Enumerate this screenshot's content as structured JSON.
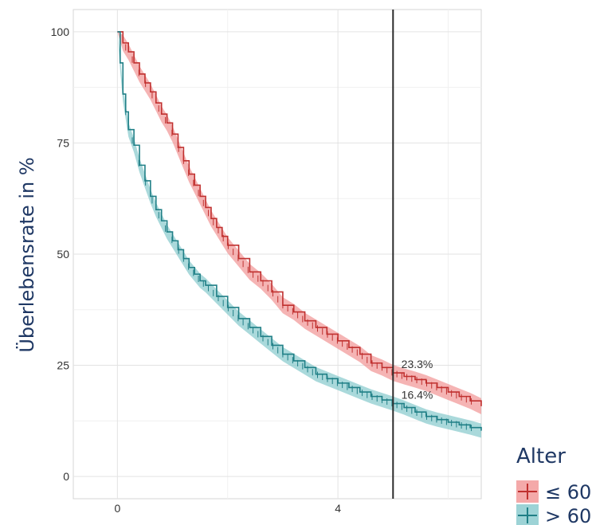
{
  "chart_data": {
    "type": "line",
    "title": "",
    "xlabel": "",
    "ylabel": "Überlebensrate in %",
    "xlim": [
      -0.8,
      6.6
    ],
    "ylim": [
      -5,
      105
    ],
    "x_ticks": [
      0,
      4
    ],
    "x_tick_labels": [
      "0",
      "4"
    ],
    "y_ticks": [
      0,
      25,
      50,
      75,
      100
    ],
    "y_tick_labels": [
      "0",
      "25",
      "50",
      "75",
      "100"
    ],
    "grid": true,
    "reference_line_x": 5,
    "legend": {
      "title": "Alter",
      "placement": "bottom-right",
      "entries": [
        "≤ 60",
        "> 60"
      ]
    },
    "annotations": [
      {
        "text": "23.3%",
        "x": 5.15,
        "y": 25.3
      },
      {
        "text": "16.4%",
        "x": 5.15,
        "y": 18.4
      }
    ],
    "series": [
      {
        "name": "≤ 60",
        "color": "#c0302f",
        "band_color": "#f08c8c",
        "x": [
          0,
          0.1,
          0.2,
          0.3,
          0.4,
          0.5,
          0.6,
          0.7,
          0.8,
          0.9,
          1.0,
          1.1,
          1.2,
          1.3,
          1.4,
          1.5,
          1.6,
          1.7,
          1.8,
          1.9,
          2.0,
          2.2,
          2.4,
          2.6,
          2.8,
          3.0,
          3.2,
          3.4,
          3.6,
          3.8,
          4.0,
          4.2,
          4.4,
          4.6,
          4.8,
          5.0,
          5.2,
          5.4,
          5.6,
          5.8,
          6.0,
          6.2,
          6.4,
          6.6
        ],
        "values": [
          100,
          97.5,
          95.5,
          93,
          90.5,
          88.5,
          86.5,
          84,
          81.5,
          79.5,
          77,
          74,
          71,
          68,
          65.5,
          63,
          60.5,
          58,
          56,
          54,
          52,
          49,
          46,
          44,
          41.5,
          38.5,
          37,
          35,
          33.5,
          32,
          30.5,
          29,
          27.5,
          25.5,
          24.5,
          23.3,
          22.5,
          21.8,
          21,
          20,
          19,
          18,
          17,
          15.8
        ],
        "band_halfwidth": 1.8
      },
      {
        "name": "> 60",
        "color": "#1f7f86",
        "band_color": "#7cc4c8",
        "x": [
          0,
          0.05,
          0.1,
          0.15,
          0.2,
          0.3,
          0.4,
          0.5,
          0.6,
          0.7,
          0.8,
          0.9,
          1.0,
          1.1,
          1.2,
          1.3,
          1.4,
          1.5,
          1.6,
          1.8,
          2.0,
          2.2,
          2.4,
          2.6,
          2.8,
          3.0,
          3.2,
          3.4,
          3.6,
          3.8,
          4.0,
          4.2,
          4.4,
          4.6,
          4.8,
          5.0,
          5.2,
          5.4,
          5.6,
          5.8,
          6.0,
          6.2,
          6.4,
          6.6
        ],
        "values": [
          100,
          93,
          86,
          82,
          78,
          74.5,
          70,
          66.5,
          63,
          60,
          57.5,
          55,
          53,
          51,
          49,
          47,
          45.5,
          44,
          43,
          40.5,
          38,
          35.5,
          33.5,
          31.5,
          29.5,
          27.5,
          26,
          24.5,
          23,
          22,
          21,
          20,
          19,
          18,
          17.2,
          16.4,
          15.5,
          14.5,
          13.5,
          12.8,
          12.2,
          11.6,
          11,
          10.3
        ],
        "band_halfwidth": 1.6
      }
    ]
  }
}
